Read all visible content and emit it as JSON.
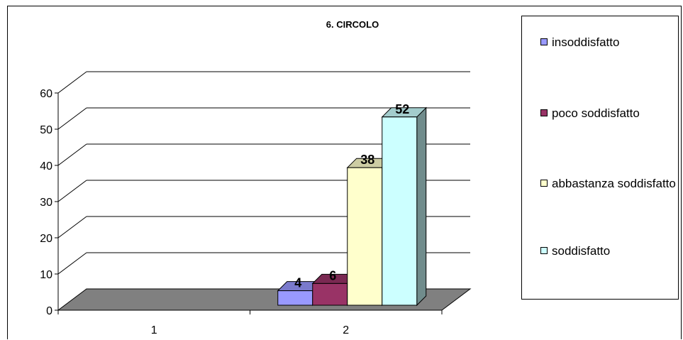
{
  "chart_data": {
    "type": "bar",
    "title": "6. CIRCOLO",
    "categories": [
      "1",
      "2"
    ],
    "ylim": [
      0,
      60
    ],
    "yticks": [
      "0",
      "10",
      "20",
      "30",
      "40",
      "50",
      "60"
    ],
    "series": [
      {
        "name": "insoddisfatto",
        "values": [
          null,
          4
        ],
        "color": "#9999ff",
        "label": "4"
      },
      {
        "name": "poco soddisfatto",
        "values": [
          null,
          6
        ],
        "color": "#993366",
        "label": "6"
      },
      {
        "name": "abbastanza soddisfatto",
        "values": [
          null,
          38
        ],
        "color": "#ffffcc",
        "label": "38"
      },
      {
        "name": "soddisfatto",
        "values": [
          null,
          52
        ],
        "color": "#ccffff",
        "label": "52"
      }
    ],
    "grid": true,
    "legend": "right",
    "floor_color": "#808080"
  }
}
